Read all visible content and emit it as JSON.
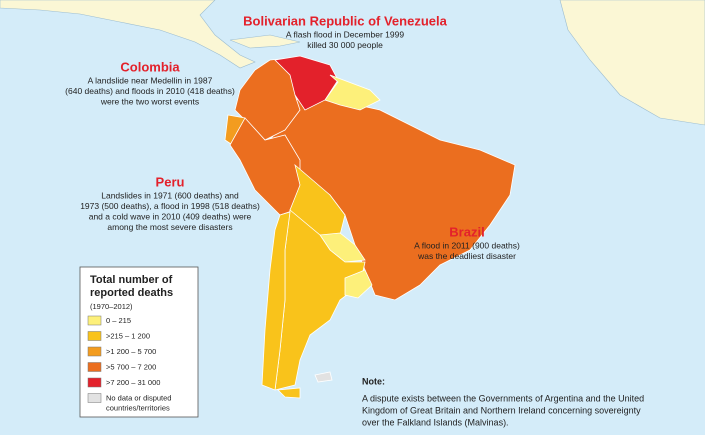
{
  "annotations": [
    {
      "title": "Bolivarian Republic of Venezuela",
      "lines": [
        "A flash flood in December 1999",
        "killed 30 000 people"
      ]
    },
    {
      "title": "Colombia",
      "lines": [
        "A landslide near Medellin in 1987",
        "(640 deaths) and floods in 2010 (418 deaths)",
        "were the two worst events"
      ]
    },
    {
      "title": "Peru",
      "lines": [
        "Landslides in 1971 (600 deaths) and",
        "1973 (500 deaths), a flood in 1998 (518 deaths)",
        "and a cold wave in 2010 (409 deaths) were",
        "among the most severe disasters"
      ]
    },
    {
      "title": "Brazil",
      "lines": [
        "A flood in 2011 (900 deaths)",
        "was the deadliest disaster"
      ]
    }
  ],
  "legend": {
    "title": [
      "Total number of",
      "reported deaths"
    ],
    "subtitle": "(1970–2012)",
    "items": [
      {
        "lines": [
          "0 – 215"
        ],
        "color": "#fdf07a"
      },
      {
        "lines": [
          ">215 – 1 200"
        ],
        "color": "#f9c31b"
      },
      {
        "lines": [
          ">1 200 – 5 700"
        ],
        "color": "#f39c1f"
      },
      {
        "lines": [
          ">5 700 – 7 200"
        ],
        "color": "#eb6e1f"
      },
      {
        "lines": [
          ">7 200 – 31 000"
        ],
        "color": "#e3212b"
      },
      {
        "lines": [
          "No data or disputed",
          "countries/territories"
        ],
        "color": "#e2e2e2"
      }
    ]
  },
  "note": {
    "title": "Note:",
    "lines": [
      "A dispute exists between the Governments of Argentina and the United",
      "Kingdom of Great Britain and Northern Ireland concerning sovereignty",
      "over the Falkland Islands (Malvinas)."
    ]
  }
}
